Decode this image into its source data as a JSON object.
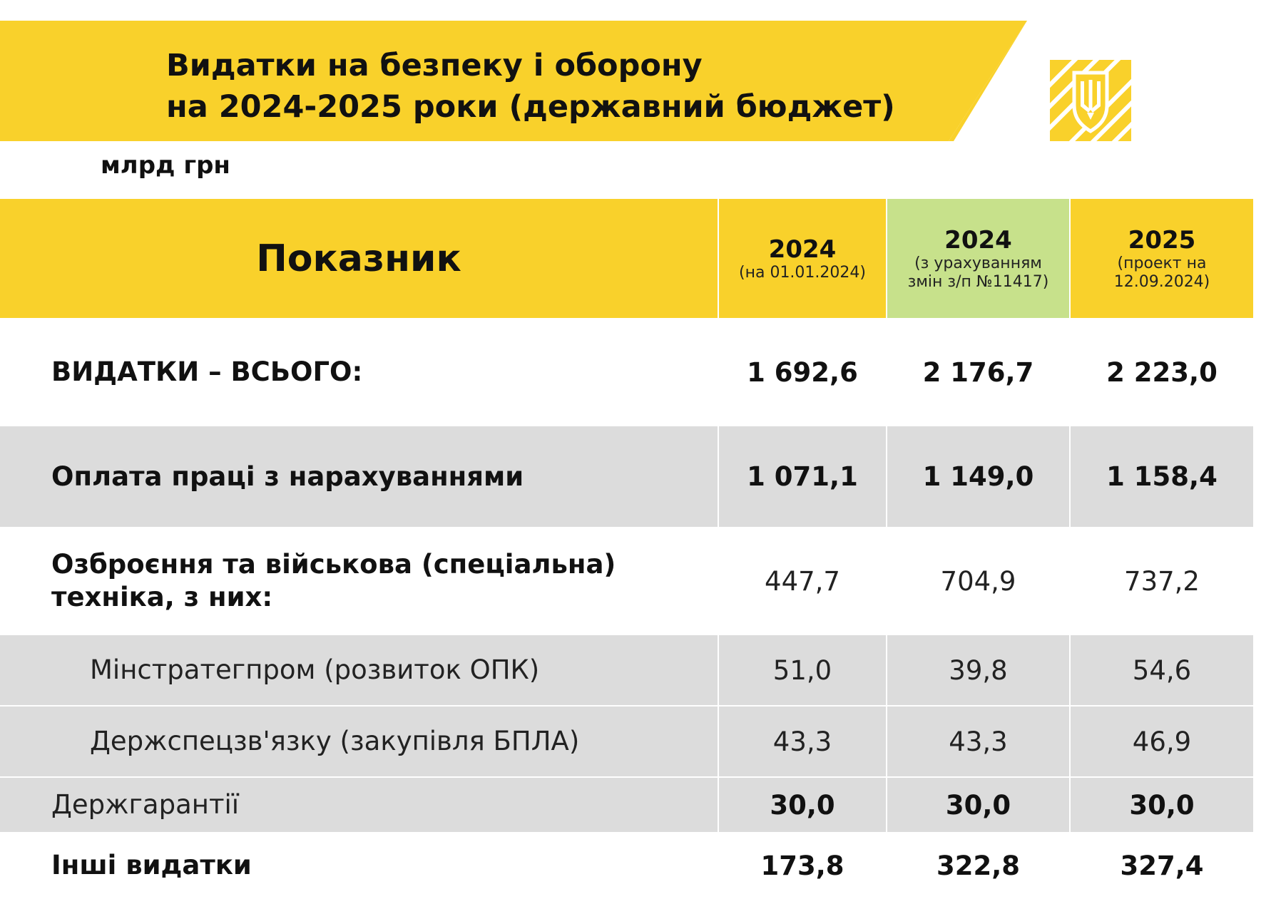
{
  "header": {
    "title_line1": "Видатки на безпеку і оборону",
    "title_line2": "на 2024-2025 роки (державний бюджет)",
    "emblem": "tryzub-emblem-icon",
    "accent_color": "#F9D12B"
  },
  "unit": "млрд грн",
  "table": {
    "indicator_header": "Показник",
    "columns": [
      {
        "year": "2024",
        "note": "(на 01.01.2024)",
        "color": "#F9D12B"
      },
      {
        "year": "2024",
        "note": "(з урахуванням\nзмін з/п №11417)",
        "color": "#C7E18B"
      },
      {
        "year": "2025",
        "note": "(проект на\n12.09.2024)",
        "color": "#F9D12B"
      }
    ],
    "rows": [
      {
        "label": "ВИДАТКИ – ВСЬОГО:",
        "values": [
          "1 692,6",
          "2 176,7",
          "2 223,0"
        ]
      },
      {
        "label": "Оплата праці з нарахуваннями",
        "values": [
          "1 071,1",
          "1 149,0",
          "1 158,4"
        ]
      },
      {
        "label": "Озброєння та військова (спеціальна)\nтехніка, з них:",
        "values": [
          "447,7",
          "704,9",
          "737,2"
        ]
      },
      {
        "label": "Мінстратегпром (розвиток ОПК)",
        "values": [
          "51,0",
          "39,8",
          "54,6"
        ]
      },
      {
        "label": "Держспецзв'язку (закупівля БПЛА)",
        "values": [
          "43,3",
          "43,3",
          "46,9"
        ]
      },
      {
        "label": "Держгарантії",
        "values": [
          "30,0",
          "30,0",
          "30,0"
        ]
      },
      {
        "label": "Інші видатки",
        "values": [
          "173,8",
          "322,8",
          "327,4"
        ]
      }
    ]
  }
}
